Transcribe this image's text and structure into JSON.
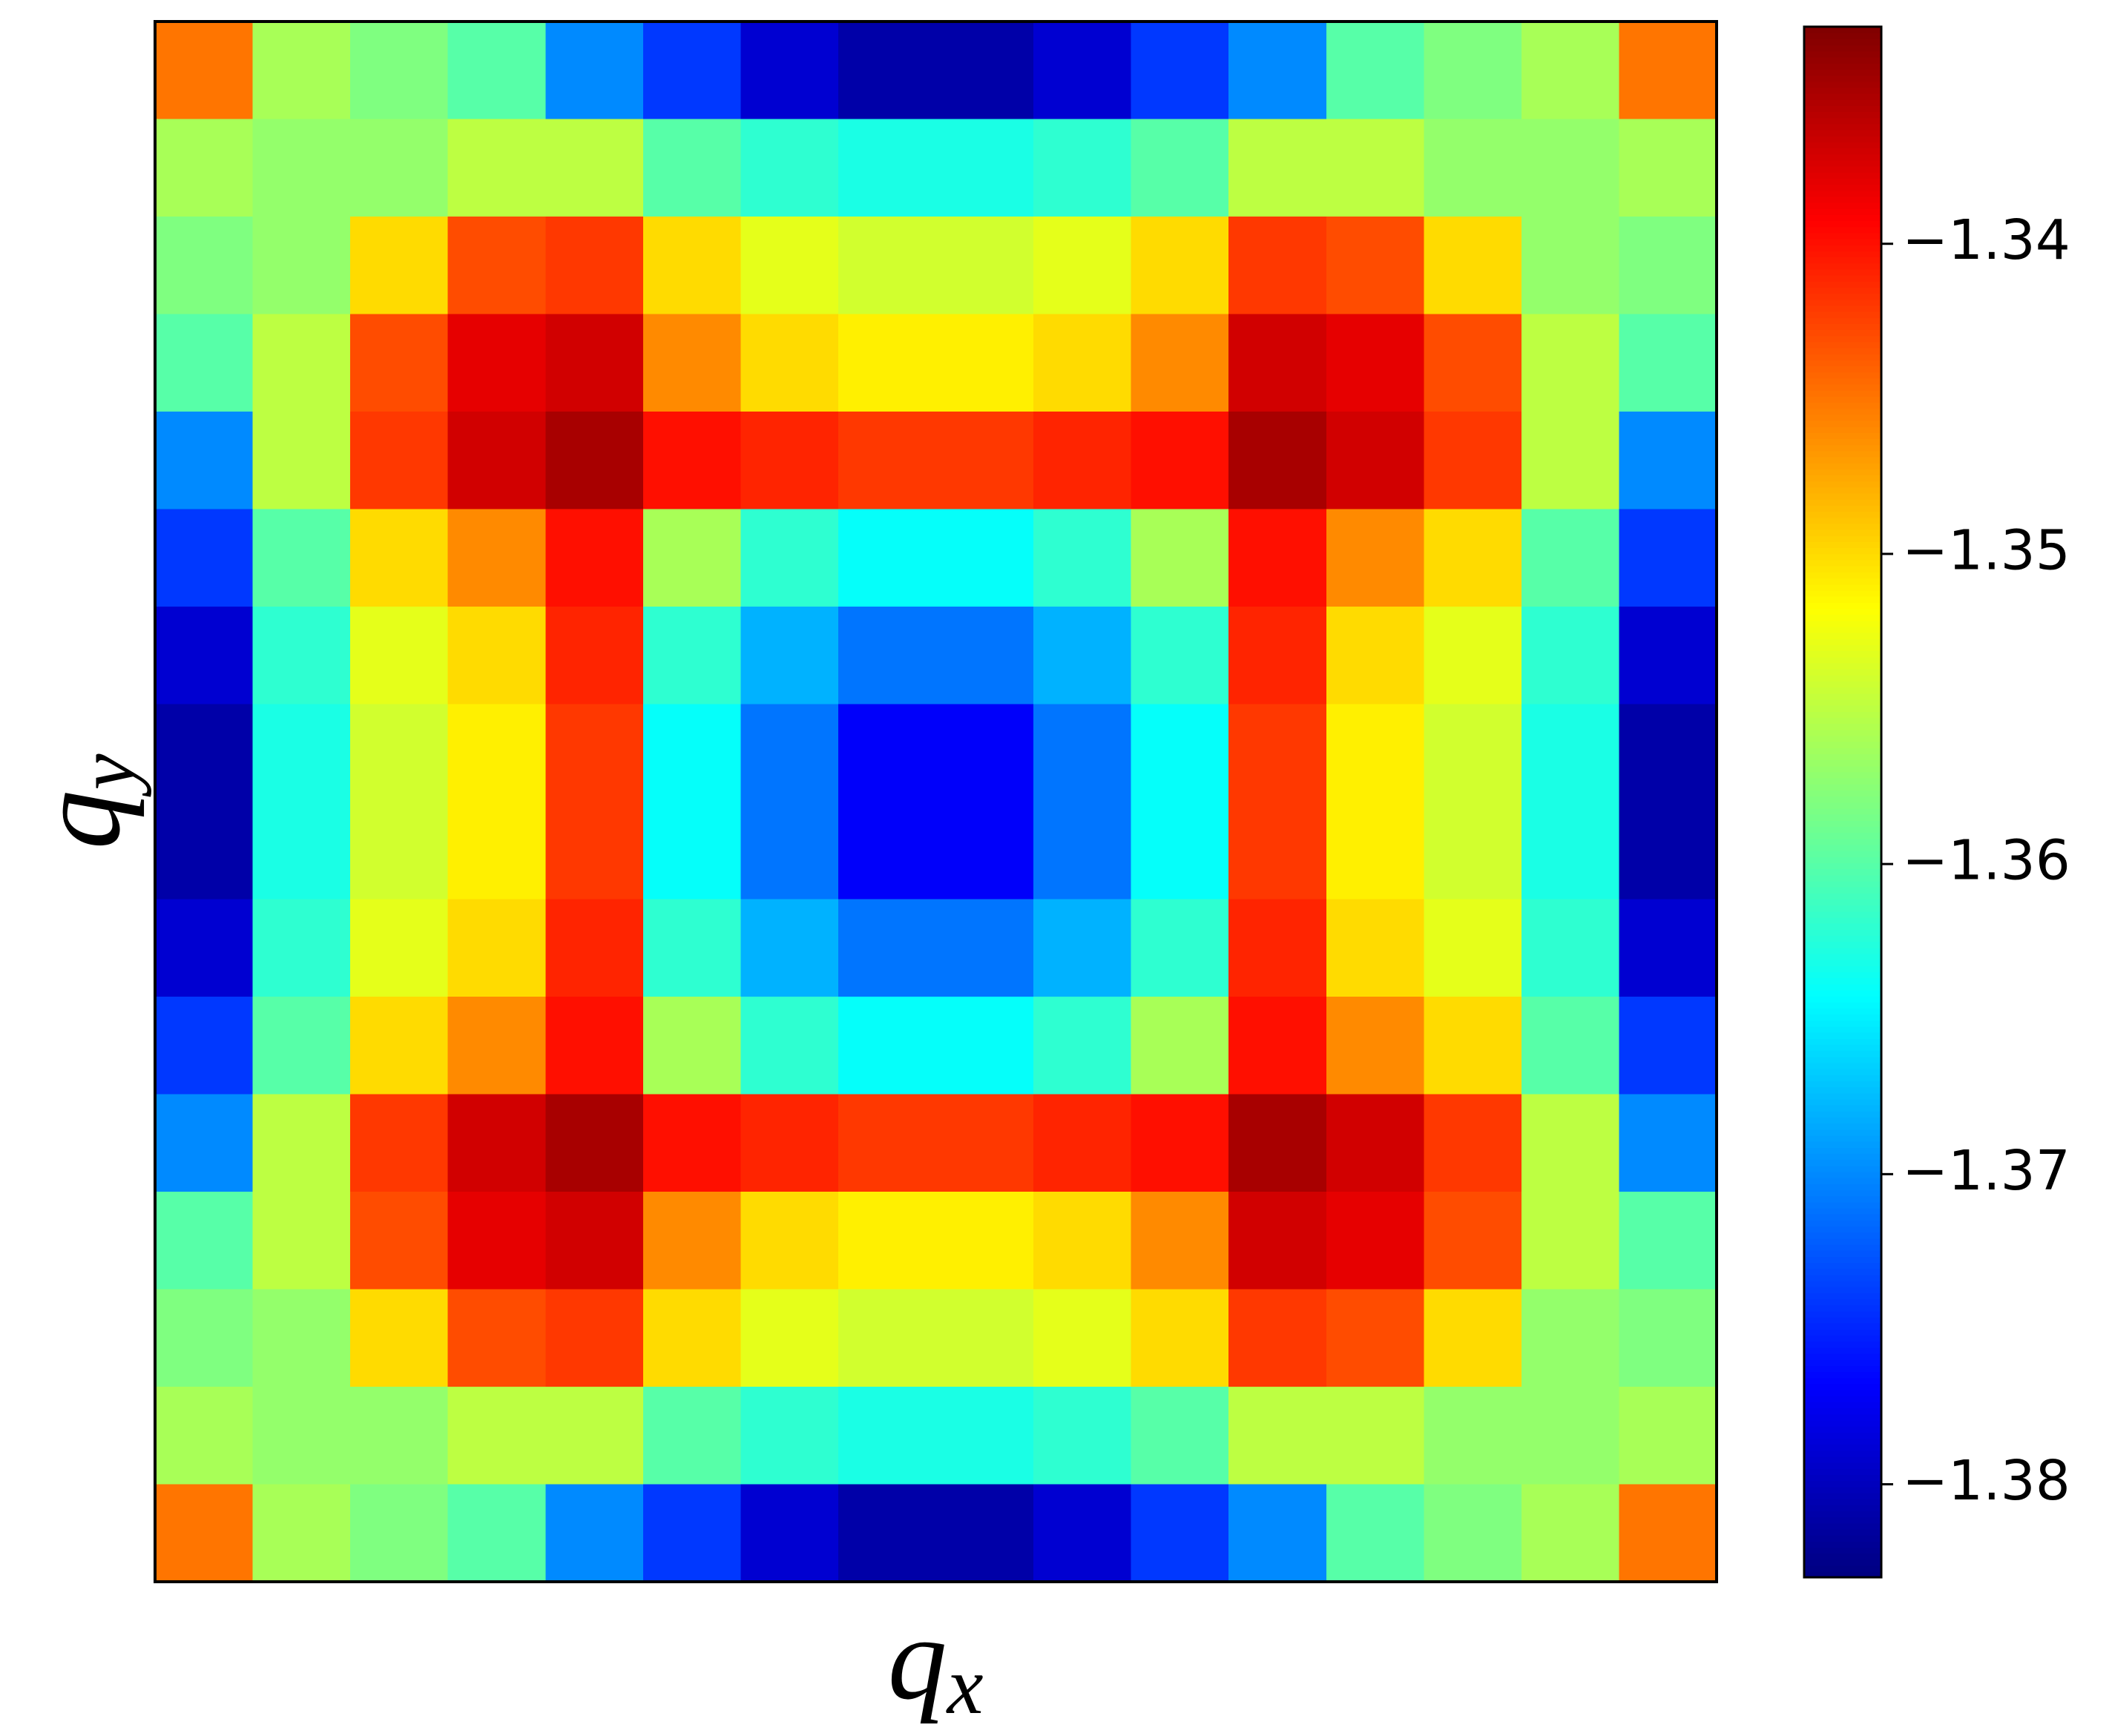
{
  "chart_data": {
    "type": "heatmap",
    "colormap": "jet",
    "xlabel": {
      "symbol": "q",
      "subscript": "x"
    },
    "ylabel": {
      "symbol": "q",
      "subscript": "y"
    },
    "zlim": [
      -1.383,
      -1.333
    ],
    "zticks": [
      {
        "value": -1.34,
        "label": "−1.34"
      },
      {
        "value": -1.35,
        "label": "−1.35"
      },
      {
        "value": -1.36,
        "label": "−1.36"
      },
      {
        "value": -1.37,
        "label": "−1.37"
      },
      {
        "value": -1.38,
        "label": "−1.38"
      }
    ],
    "z": [
      [
        -1.345,
        -1.356,
        -1.358,
        -1.36,
        -1.37,
        -1.374,
        -1.379,
        -1.381,
        -1.381,
        -1.379,
        -1.374,
        -1.37,
        -1.36,
        -1.358,
        -1.356,
        -1.345
      ],
      [
        -1.356,
        -1.357,
        -1.357,
        -1.355,
        -1.355,
        -1.36,
        -1.362,
        -1.363,
        -1.363,
        -1.362,
        -1.36,
        -1.355,
        -1.355,
        -1.357,
        -1.357,
        -1.356
      ],
      [
        -1.358,
        -1.357,
        -1.35,
        -1.343,
        -1.342,
        -1.35,
        -1.353,
        -1.354,
        -1.354,
        -1.353,
        -1.35,
        -1.342,
        -1.343,
        -1.35,
        -1.357,
        -1.358
      ],
      [
        -1.36,
        -1.355,
        -1.343,
        -1.338,
        -1.337,
        -1.346,
        -1.35,
        -1.351,
        -1.351,
        -1.35,
        -1.346,
        -1.337,
        -1.338,
        -1.343,
        -1.355,
        -1.36
      ],
      [
        -1.37,
        -1.355,
        -1.342,
        -1.337,
        -1.335,
        -1.34,
        -1.341,
        -1.342,
        -1.342,
        -1.341,
        -1.34,
        -1.335,
        -1.337,
        -1.342,
        -1.355,
        -1.37
      ],
      [
        -1.374,
        -1.36,
        -1.35,
        -1.346,
        -1.34,
        -1.356,
        -1.362,
        -1.364,
        -1.364,
        -1.362,
        -1.356,
        -1.34,
        -1.346,
        -1.35,
        -1.36,
        -1.374
      ],
      [
        -1.379,
        -1.362,
        -1.353,
        -1.35,
        -1.341,
        -1.362,
        -1.368,
        -1.371,
        -1.371,
        -1.368,
        -1.362,
        -1.341,
        -1.35,
        -1.353,
        -1.362,
        -1.379
      ],
      [
        -1.381,
        -1.363,
        -1.354,
        -1.351,
        -1.342,
        -1.364,
        -1.371,
        -1.377,
        -1.377,
        -1.371,
        -1.364,
        -1.342,
        -1.351,
        -1.354,
        -1.363,
        -1.381
      ],
      [
        -1.381,
        -1.363,
        -1.354,
        -1.351,
        -1.342,
        -1.364,
        -1.371,
        -1.377,
        -1.377,
        -1.371,
        -1.364,
        -1.342,
        -1.351,
        -1.354,
        -1.363,
        -1.381
      ],
      [
        -1.379,
        -1.362,
        -1.353,
        -1.35,
        -1.341,
        -1.362,
        -1.368,
        -1.371,
        -1.371,
        -1.368,
        -1.362,
        -1.341,
        -1.35,
        -1.353,
        -1.362,
        -1.379
      ],
      [
        -1.374,
        -1.36,
        -1.35,
        -1.346,
        -1.34,
        -1.356,
        -1.362,
        -1.364,
        -1.364,
        -1.362,
        -1.356,
        -1.34,
        -1.346,
        -1.35,
        -1.36,
        -1.374
      ],
      [
        -1.37,
        -1.355,
        -1.342,
        -1.337,
        -1.335,
        -1.34,
        -1.341,
        -1.342,
        -1.342,
        -1.341,
        -1.34,
        -1.335,
        -1.337,
        -1.342,
        -1.355,
        -1.37
      ],
      [
        -1.36,
        -1.355,
        -1.343,
        -1.338,
        -1.337,
        -1.346,
        -1.35,
        -1.351,
        -1.351,
        -1.35,
        -1.346,
        -1.337,
        -1.338,
        -1.343,
        -1.355,
        -1.36
      ],
      [
        -1.358,
        -1.357,
        -1.35,
        -1.343,
        -1.342,
        -1.35,
        -1.353,
        -1.354,
        -1.354,
        -1.353,
        -1.35,
        -1.342,
        -1.343,
        -1.35,
        -1.357,
        -1.358
      ],
      [
        -1.356,
        -1.357,
        -1.357,
        -1.355,
        -1.355,
        -1.36,
        -1.362,
        -1.363,
        -1.363,
        -1.362,
        -1.36,
        -1.355,
        -1.355,
        -1.357,
        -1.357,
        -1.356
      ],
      [
        -1.345,
        -1.356,
        -1.358,
        -1.36,
        -1.37,
        -1.374,
        -1.379,
        -1.381,
        -1.381,
        -1.379,
        -1.374,
        -1.37,
        -1.36,
        -1.358,
        -1.356,
        -1.345
      ]
    ]
  }
}
